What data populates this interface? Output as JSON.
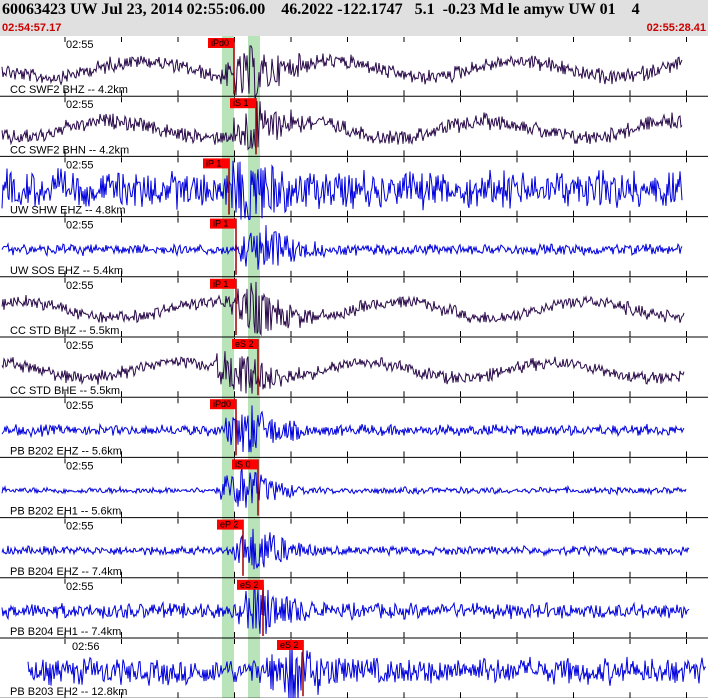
{
  "header": {
    "event_line": "60063423 UW Jul 23, 2014 02:55:06.00    46.2022 -122.1747   5.1  -0.23 Md le amyw UW 01    4",
    "start_time": "02:54:57.17",
    "end_time": "02:55:28.41"
  },
  "colors": {
    "header_bg": "#e0e0e0",
    "header_time": "#cc0000",
    "trace_dark": "#2a0a4a",
    "trace_blue": "#0000dd",
    "pick_box": "#ff0000",
    "window_band": "#b9e3b9"
  },
  "traces": [
    {
      "time_label": "02:55",
      "channel": "CC SWF2 BHZ -- 4.2km",
      "pick": "iPd0",
      "color": "dark",
      "amp": 0.35
    },
    {
      "time_label": "02:55",
      "channel": "CC SWF2 BHN -- 4.2km",
      "pick": "iS 1",
      "color": "dark",
      "amp": 0.35
    },
    {
      "time_label": "02:55",
      "channel": "UW SHW EHZ -- 4.8km",
      "pick": "iP 1",
      "color": "blue",
      "amp": 0.85
    },
    {
      "time_label": "02:55",
      "channel": "UW SOS EHZ -- 5.4km",
      "pick": "iP 1",
      "color": "blue",
      "amp": 0.25
    },
    {
      "time_label": "02:55",
      "channel": "CC STD BHZ -- 5.5km",
      "pick": "iP 1",
      "color": "dark",
      "amp": 0.3
    },
    {
      "time_label": "02:55",
      "channel": "CC STD BHE -- 5.5km",
      "pick": "eS 2",
      "color": "dark",
      "amp": 0.3
    },
    {
      "time_label": "02:55",
      "channel": "PB B202 EHZ -- 5.6km",
      "pick": "iPd0",
      "color": "blue",
      "amp": 0.25
    },
    {
      "time_label": "02:55",
      "channel": "PB B202 EH1 -- 5.6km",
      "pick": "iS 0",
      "color": "blue",
      "amp": 0.15
    },
    {
      "time_label": "02:55",
      "channel": "PB B204 EHZ -- 7.4km",
      "pick": "eP 2",
      "color": "blue",
      "amp": 0.2
    },
    {
      "time_label": "02:55",
      "channel": "PB B204 EH1 -- 7.4km",
      "pick": "eS 2",
      "color": "blue",
      "amp": 0.35
    },
    {
      "time_label": "02:56",
      "channel": "PB B203 EH2 -- 12.8km",
      "pick": "eS 2",
      "color": "blue",
      "amp": 0.6
    }
  ]
}
